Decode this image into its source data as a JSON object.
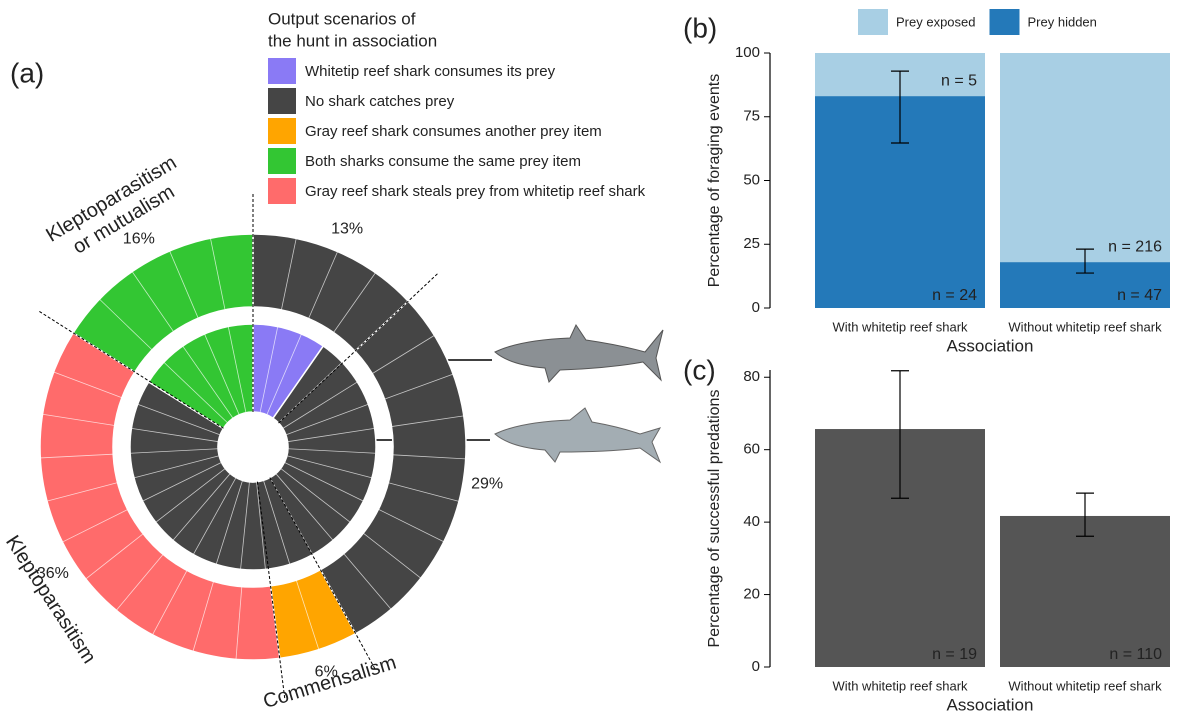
{
  "chart_data": [
    {
      "type": "sunburst",
      "panel_label": "(a)",
      "legend_title": [
        "Output scenarios of",
        "the hunt in association"
      ],
      "legend": [
        {
          "name": "Whitetip reef shark consumes its prey",
          "color": "#8a7af5"
        },
        {
          "name": "No shark catches prey",
          "color": "#454545"
        },
        {
          "name": "Gray reef shark consumes another prey item",
          "color": "#ffa500"
        },
        {
          "name": "Both sharks consume the same prey item",
          "color": "#33c633"
        },
        {
          "name": "Gray reef shark steals prey from whitetip reef shark",
          "color": "#ff6b6b"
        }
      ],
      "outer_ring": {
        "values": [
          13,
          29,
          6,
          36,
          16
        ],
        "value_labels": [
          "13%",
          "29%",
          "6%",
          "36%",
          "16%"
        ],
        "colors": [
          "#454545",
          "#454545",
          "#ffa500",
          "#ff6b6b",
          "#33c633"
        ],
        "events": [
          4,
          9,
          2,
          11,
          5
        ]
      },
      "inner_ring": {
        "values": [
          3,
          23,
          5
        ],
        "colors": [
          "#8a7af5",
          "#454545",
          "#33c633"
        ]
      },
      "annotations": [
        {
          "text": [
            "Kleptoparasitism",
            "or mutualism"
          ],
          "color": "#33c633"
        },
        {
          "text": [
            "Kleptoparasitism"
          ],
          "color": "#ff6b6b"
        },
        {
          "text": [
            "Commensalism"
          ],
          "color": "#ffa500"
        }
      ]
    },
    {
      "type": "stacked_bar",
      "panel_label": "(b)",
      "categories": [
        "With whitetip reef shark",
        "Without whitetip reef shark"
      ],
      "ylabel": "Percentage of foraging events",
      "xlabel": "Association",
      "ylim": [
        0,
        100
      ],
      "yticks": [
        0,
        25,
        50,
        75,
        100
      ],
      "legend_position": "top",
      "series": [
        {
          "name": "Prey hidden",
          "color": "#2479b9",
          "values": [
            83.1,
            18.0
          ],
          "ci_low": [
            64.7,
            13.7
          ],
          "ci_high": [
            92.9,
            23.1
          ],
          "n_labels": [
            "n = 24",
            "n = 47"
          ]
        },
        {
          "name": "Prey exposed",
          "color": "#a8cfe4",
          "values": [
            16.9,
            82.0
          ],
          "n_labels": [
            "n = 5",
            "n = 216"
          ]
        }
      ]
    },
    {
      "type": "bar",
      "panel_label": "(c)",
      "categories": [
        "With whitetip reef shark",
        "Without whitetip reef shark"
      ],
      "ylabel": "Percentage of successful predations",
      "xlabel": "Association",
      "values": [
        65.7,
        41.7
      ],
      "ci_low": [
        46.6,
        36.1
      ],
      "ci_high": [
        81.8,
        48.0
      ],
      "n_labels": [
        "n = 19",
        "n = 110"
      ],
      "color": "#555555",
      "ylim": [
        0,
        82
      ],
      "yticks": [
        0,
        20,
        40,
        60,
        80
      ]
    }
  ]
}
